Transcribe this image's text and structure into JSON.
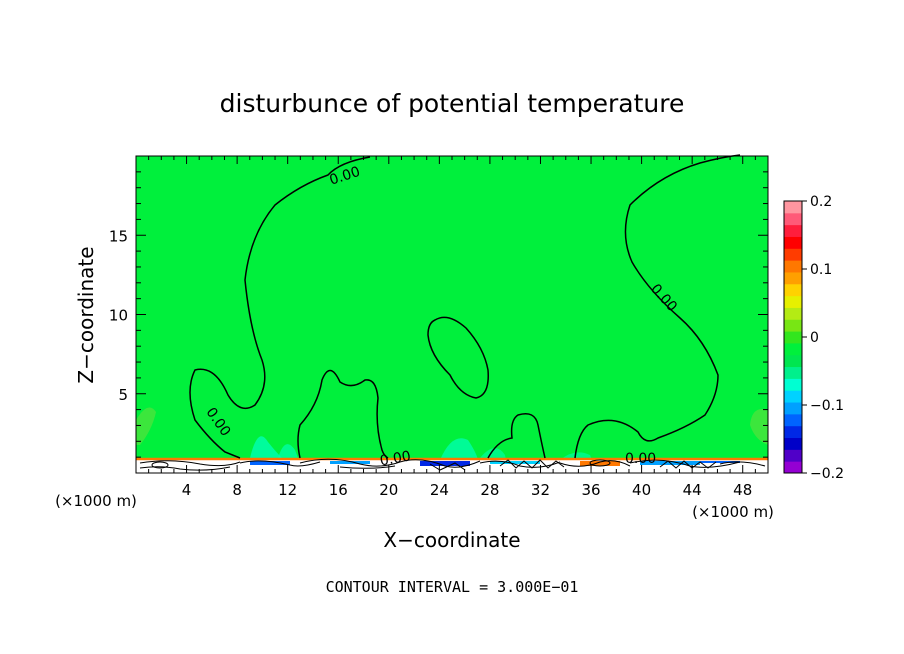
{
  "chart_data": {
    "type": "heatmap",
    "title": "disturbunce of potential temperature",
    "xlabel": "X−coordinate",
    "ylabel": "Z−coordinate",
    "x_unit": "(×1000 m)",
    "y_unit": "(×1000 m)",
    "xlim": [
      0,
      50
    ],
    "ylim": [
      0,
      20
    ],
    "x_ticks": [
      4,
      8,
      12,
      16,
      20,
      24,
      28,
      32,
      36,
      40,
      44,
      48
    ],
    "y_ticks": [
      5,
      10,
      15
    ],
    "x_tick_labels": [
      "4",
      "8",
      "12",
      "16",
      "20",
      "24",
      "28",
      "32",
      "36",
      "40",
      "44",
      "48"
    ],
    "y_tick_labels": [
      "5",
      "10",
      "15"
    ],
    "contour_label": "0.00",
    "footer": "CONTOUR INTERVAL = 3.000E−01",
    "colorbar": {
      "min": -0.2,
      "max": 0.2,
      "tick_values": [
        0.2,
        0.1,
        0,
        -0.1,
        -0.2
      ],
      "tick_labels": [
        "0.2",
        "0.1",
        "0",
        "−0.1",
        "−0.2"
      ],
      "colors": [
        "#9400d3",
        "#5000c8",
        "#0000c8",
        "#0028e6",
        "#0064ff",
        "#00a0ff",
        "#00d2ff",
        "#00ffd2",
        "#00f08c",
        "#00e650",
        "#00f03c",
        "#32e61e",
        "#78e614",
        "#b4eb14",
        "#e6f000",
        "#ffd200",
        "#ffa000",
        "#ff7800",
        "#ff3c00",
        "#ff0000",
        "#ff1e3c",
        "#ff5a78",
        "#ff96a0"
      ]
    },
    "field_color": "#00f03c",
    "contour_color": "#000000"
  }
}
